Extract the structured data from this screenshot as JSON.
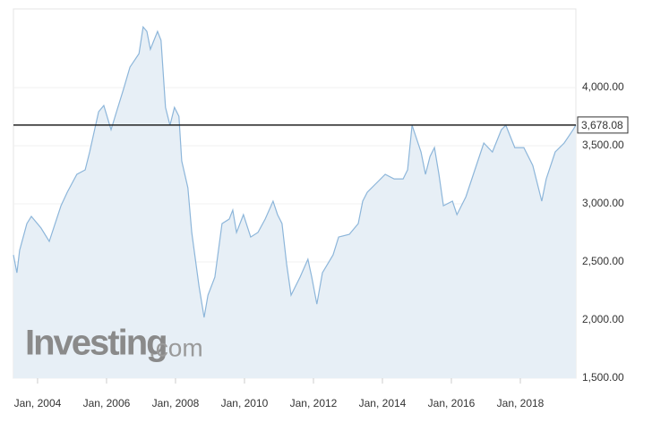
{
  "chart_data": {
    "type": "area",
    "logo": {
      "brand": "Investing",
      "suffix": ".com"
    },
    "x": [
      2003.3,
      2003.4,
      2003.48,
      2003.69,
      2003.82,
      2004.1,
      2004.34,
      2004.68,
      2004.86,
      2005.14,
      2005.38,
      2005.51,
      2005.77,
      2005.92,
      2006.13,
      2006.29,
      2006.49,
      2006.68,
      2006.94,
      2007.06,
      2007.17,
      2007.27,
      2007.48,
      2007.58,
      2007.71,
      2007.84,
      2007.97,
      2008.1,
      2008.18,
      2008.36,
      2008.47,
      2008.68,
      2008.83,
      2008.94,
      2009.14,
      2009.35,
      2009.56,
      2009.66,
      2009.77,
      2009.97,
      2010.18,
      2010.39,
      2010.6,
      2010.83,
      2010.96,
      2011.09,
      2011.22,
      2011.35,
      2011.61,
      2011.84,
      2011.95,
      2012.1,
      2012.26,
      2012.57,
      2012.73,
      2013.04,
      2013.3,
      2013.43,
      2013.56,
      2013.82,
      2014.08,
      2014.34,
      2014.6,
      2014.73,
      2014.86,
      2014.99,
      2015.12,
      2015.25,
      2015.38,
      2015.51,
      2015.64,
      2015.77,
      2016.03,
      2016.16,
      2016.42,
      2016.68,
      2016.94,
      2017.19,
      2017.45,
      2017.58,
      2017.84,
      2018.1,
      2018.36,
      2018.62,
      2018.75,
      2019.01,
      2019.27,
      2019.53,
      2019.61
    ],
    "series": [
      {
        "color": "#8db6da",
        "fill": "#e7eff6",
        "values": [
          2561,
          2407,
          2600,
          2830,
          2892,
          2792,
          2677,
          2984,
          3100,
          3254,
          3292,
          3446,
          3792,
          3846,
          3638,
          3792,
          3984,
          4176,
          4292,
          4522,
          4484,
          4330,
          4484,
          4407,
          3830,
          3676,
          3830,
          3753,
          3369,
          3138,
          2754,
          2292,
          2023,
          2215,
          2369,
          2830,
          2869,
          2946,
          2754,
          2907,
          2715,
          2754,
          2869,
          3023,
          2907,
          2830,
          2484,
          2215,
          2369,
          2523,
          2369,
          2138,
          2407,
          2561,
          2715,
          2738,
          2830,
          3023,
          3100,
          3177,
          3254,
          3215,
          3215,
          3292,
          3676,
          3561,
          3446,
          3254,
          3407,
          3484,
          3254,
          2984,
          3023,
          2907,
          3061,
          3292,
          3523,
          3446,
          3638,
          3676,
          3484,
          3484,
          3330,
          3023,
          3215,
          3446,
          3523,
          3638,
          3678.08
        ]
      }
    ],
    "current": {
      "value": 3678.08,
      "label": "3,678.08"
    },
    "xlim": [
      2003.3,
      2019.61
    ],
    "xticks": [
      {
        "value": 2004,
        "label": "Jan, 2004"
      },
      {
        "value": 2006,
        "label": "Jan, 2006"
      },
      {
        "value": 2008,
        "label": "Jan, 2008"
      },
      {
        "value": 2010,
        "label": "Jan, 2010"
      },
      {
        "value": 2012,
        "label": "Jan, 2012"
      },
      {
        "value": 2014,
        "label": "Jan, 2014"
      },
      {
        "value": 2016,
        "label": "Jan, 2016"
      },
      {
        "value": 2018,
        "label": "Jan, 2018"
      }
    ],
    "ylim": [
      1500,
      4677
    ],
    "yticks": [
      {
        "value": 1500,
        "label": "1,500.00"
      },
      {
        "value": 2000,
        "label": "2,000.00"
      },
      {
        "value": 2500,
        "label": "2,500.00"
      },
      {
        "value": 3000,
        "label": "3,000.00"
      },
      {
        "value": 3500,
        "label": "3,500.00"
      },
      {
        "value": 4000,
        "label": "4,000.00"
      }
    ],
    "grid": true
  }
}
